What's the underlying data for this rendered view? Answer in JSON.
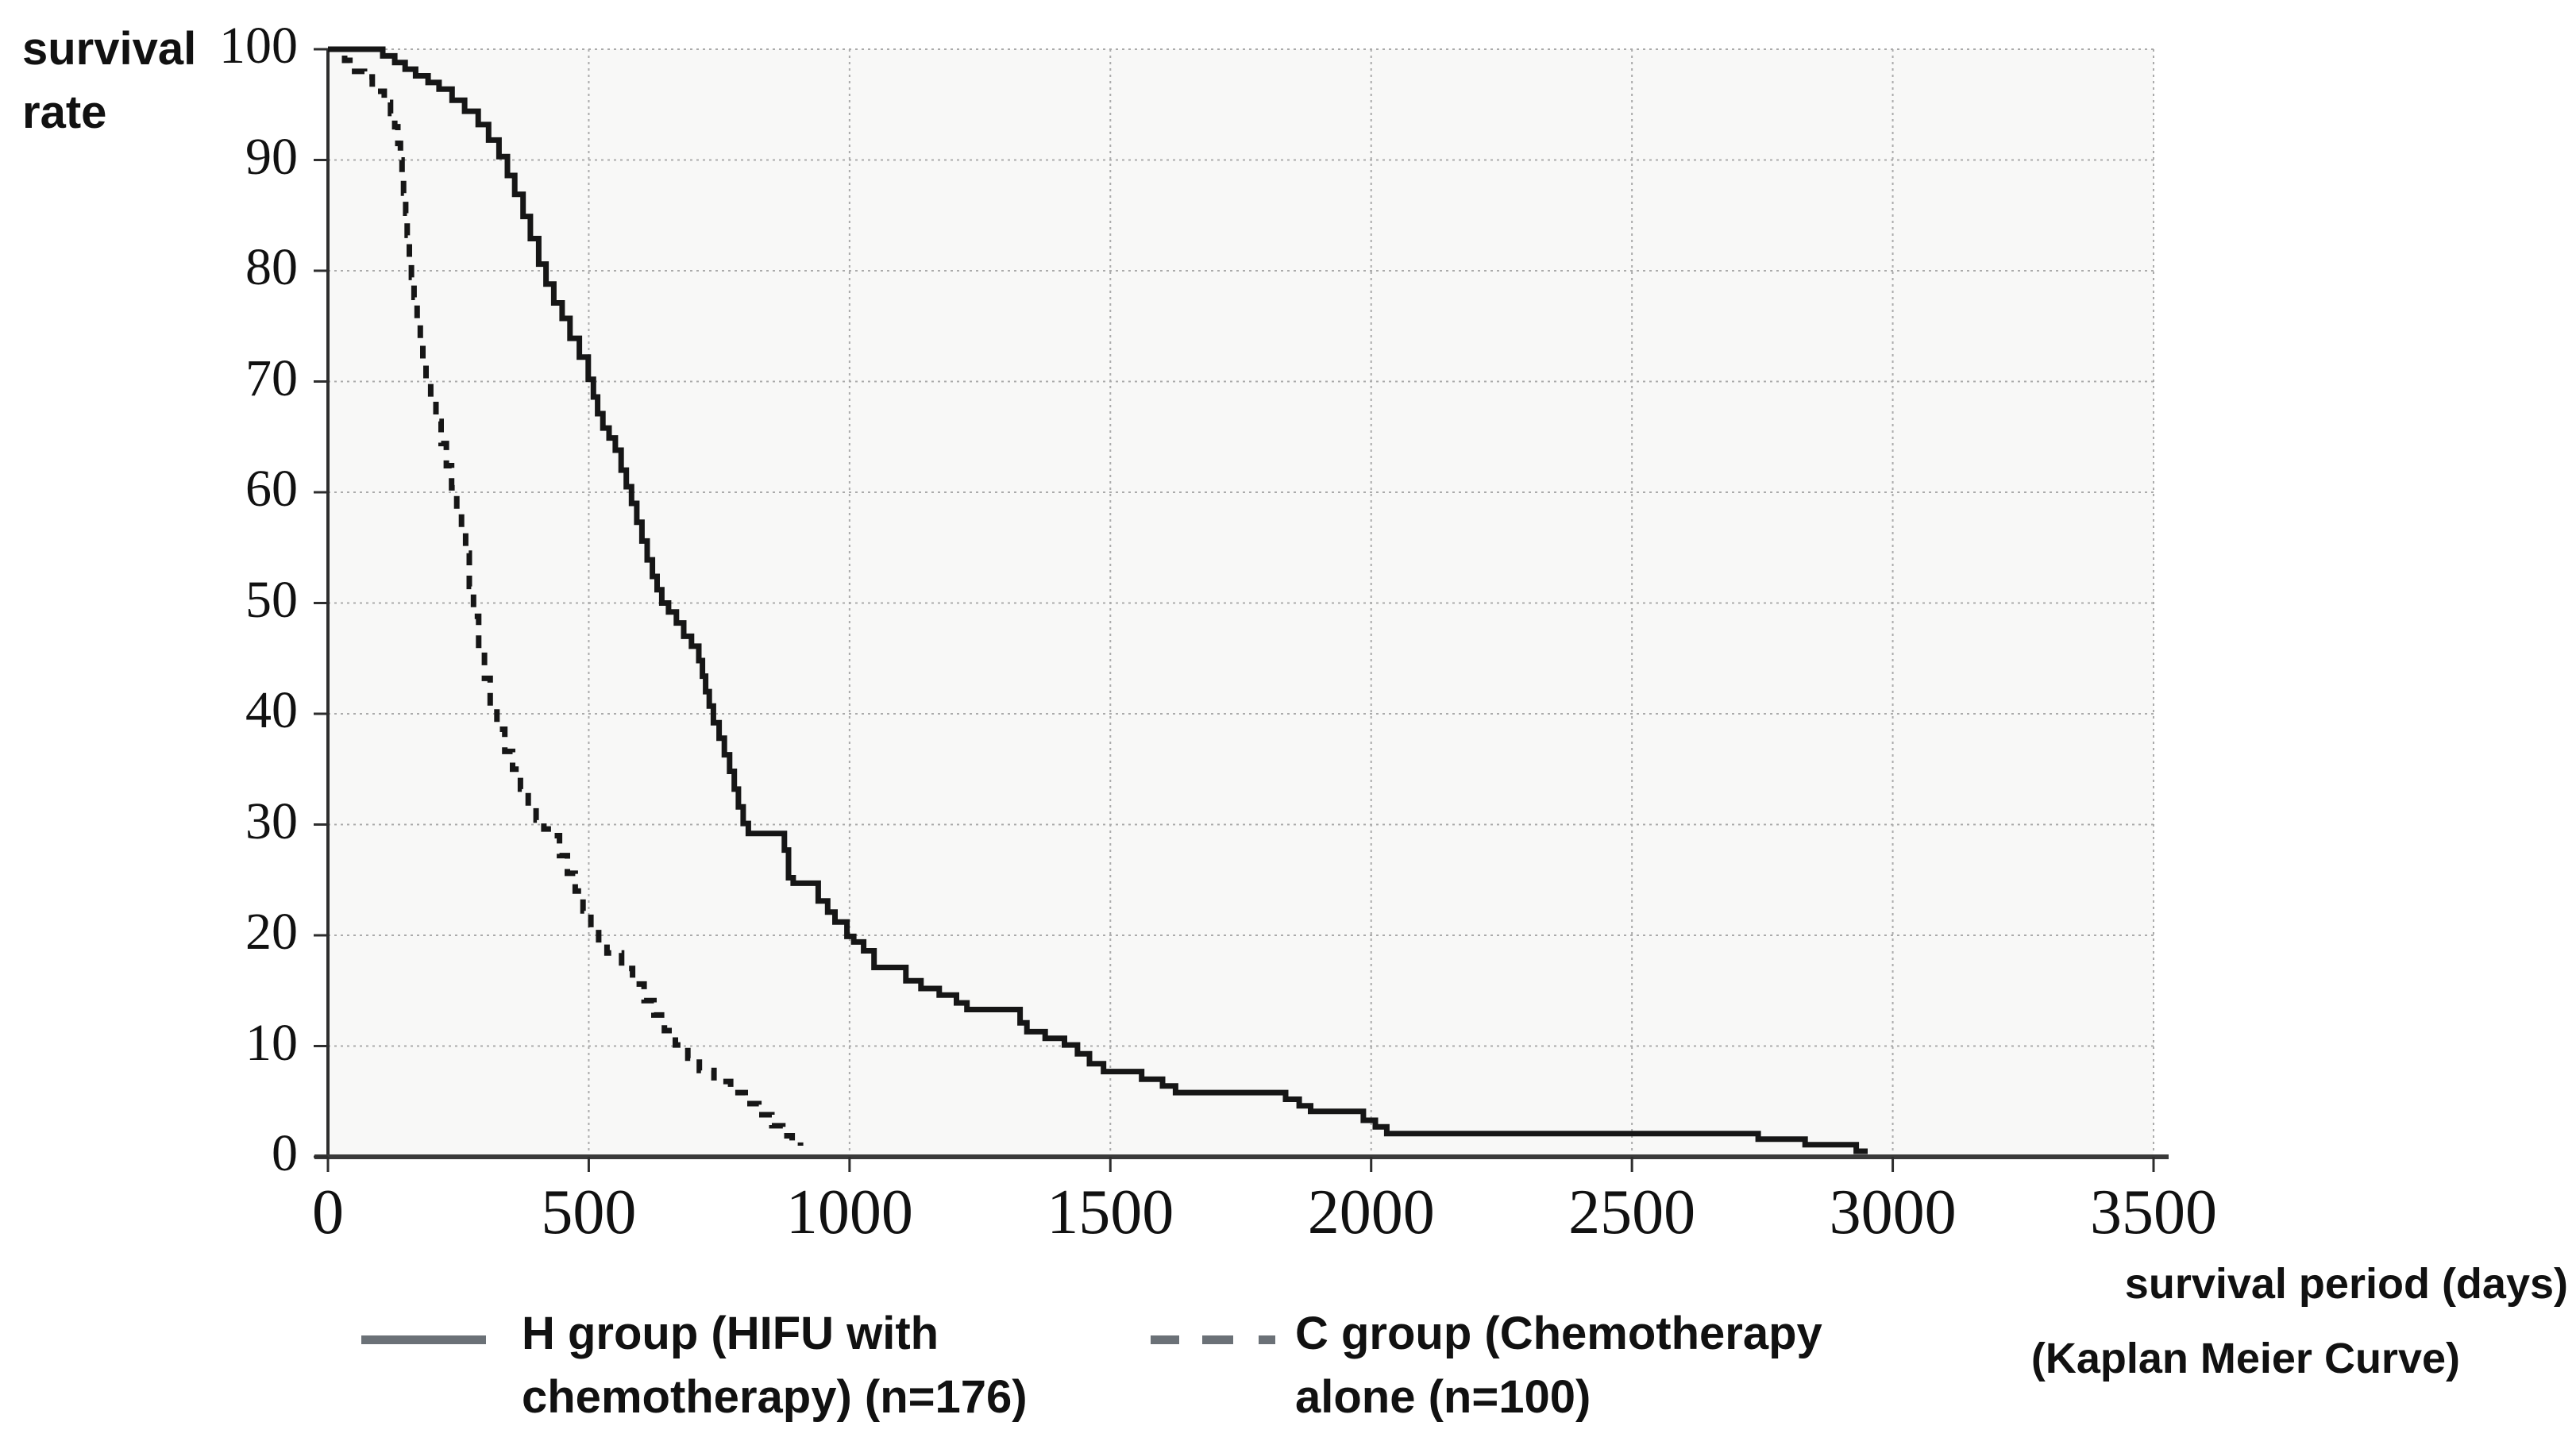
{
  "figure": {
    "y_axis_title_line1": "survival",
    "y_axis_title_line2": "rate",
    "x_axis_title": "survival period (days)",
    "caption": "(Kaplan Meier Curve)"
  },
  "legend": {
    "items": [
      {
        "key": "H",
        "swatch": "solid",
        "line1": "H group (HIFU with",
        "line2": "chemotherapy) (n=176)"
      },
      {
        "key": "C",
        "swatch": "dashed",
        "line1": "C group (Chemotherapy",
        "line2": "alone (n=100)"
      }
    ]
  },
  "colors": {
    "curve": "#161616",
    "legend_swatch": "#6b7177",
    "gridline": "#ababab",
    "y_axis": "#2e2e2e",
    "x_axis": "#3a3a3a",
    "plot_bg": "#f8f8f7",
    "text": "#111111"
  },
  "chart_data": {
    "type": "line",
    "subtype": "kaplan-meier-step",
    "title": "",
    "xlabel": "survival period (days)",
    "ylabel": "survival rate",
    "xlim": [
      0,
      3500
    ],
    "ylim": [
      0,
      100
    ],
    "x_ticks": [
      0,
      500,
      1000,
      1500,
      2000,
      2500,
      3000,
      3500
    ],
    "y_ticks": [
      0,
      10,
      20,
      30,
      40,
      50,
      60,
      70,
      80,
      90,
      100
    ],
    "grid": true,
    "legend_position": "bottom",
    "series": [
      {
        "name": "H group (HIFU with chemotherapy) (n=176)",
        "style": "solid",
        "points": [
          [
            0,
            100
          ],
          [
            105,
            99.4
          ],
          [
            128,
            98.8
          ],
          [
            148,
            98.2
          ],
          [
            168,
            97.6
          ],
          [
            192,
            97.0
          ],
          [
            213,
            96.4
          ],
          [
            238,
            95.4
          ],
          [
            262,
            94.4
          ],
          [
            288,
            93.2
          ],
          [
            308,
            91.8
          ],
          [
            328,
            90.3
          ],
          [
            344,
            88.6
          ],
          [
            358,
            86.9
          ],
          [
            374,
            84.9
          ],
          [
            388,
            82.9
          ],
          [
            404,
            80.6
          ],
          [
            418,
            78.8
          ],
          [
            433,
            77.1
          ],
          [
            449,
            75.7
          ],
          [
            464,
            73.9
          ],
          [
            482,
            72.2
          ],
          [
            499,
            70.2
          ],
          [
            509,
            68.6
          ],
          [
            517,
            67.1
          ],
          [
            527,
            65.8
          ],
          [
            539,
            64.9
          ],
          [
            551,
            63.8
          ],
          [
            562,
            62.0
          ],
          [
            572,
            60.5
          ],
          [
            582,
            59.0
          ],
          [
            592,
            57.3
          ],
          [
            602,
            55.6
          ],
          [
            612,
            53.9
          ],
          [
            622,
            52.4
          ],
          [
            631,
            51.2
          ],
          [
            640,
            50.0
          ],
          [
            653,
            49.2
          ],
          [
            668,
            48.2
          ],
          [
            682,
            47.0
          ],
          [
            697,
            46.1
          ],
          [
            711,
            44.8
          ],
          [
            718,
            43.4
          ],
          [
            724,
            42.0
          ],
          [
            731,
            40.7
          ],
          [
            739,
            39.2
          ],
          [
            750,
            37.8
          ],
          [
            760,
            36.3
          ],
          [
            770,
            34.8
          ],
          [
            779,
            33.2
          ],
          [
            787,
            31.6
          ],
          [
            796,
            30.1
          ],
          [
            806,
            29.2
          ],
          [
            875,
            27.7
          ],
          [
            883,
            25.2
          ],
          [
            892,
            24.7
          ],
          [
            940,
            23.1
          ],
          [
            958,
            22.1
          ],
          [
            972,
            21.2
          ],
          [
            995,
            19.9
          ],
          [
            1008,
            19.4
          ],
          [
            1027,
            18.6
          ],
          [
            1047,
            17.1
          ],
          [
            1108,
            15.9
          ],
          [
            1137,
            15.2
          ],
          [
            1172,
            14.6
          ],
          [
            1205,
            13.9
          ],
          [
            1225,
            13.3
          ],
          [
            1327,
            12.1
          ],
          [
            1340,
            11.3
          ],
          [
            1375,
            10.7
          ],
          [
            1412,
            10.1
          ],
          [
            1437,
            9.3
          ],
          [
            1460,
            8.4
          ],
          [
            1487,
            7.7
          ],
          [
            1560,
            7.0
          ],
          [
            1600,
            6.4
          ],
          [
            1625,
            5.8
          ],
          [
            1836,
            5.2
          ],
          [
            1862,
            4.6
          ],
          [
            1884,
            4.1
          ],
          [
            1985,
            3.3
          ],
          [
            2008,
            2.7
          ],
          [
            2030,
            2.1
          ],
          [
            2742,
            1.6
          ],
          [
            2832,
            1.1
          ],
          [
            2930,
            0.5
          ],
          [
            2952,
            0.5
          ]
        ]
      },
      {
        "name": "C group (Chemotherapy alone (n=100)",
        "style": "dashed",
        "points": [
          [
            0,
            100
          ],
          [
            32,
            99
          ],
          [
            42,
            98
          ],
          [
            70,
            97.5
          ],
          [
            85,
            96.2
          ],
          [
            108,
            95.2
          ],
          [
            120,
            94.2
          ],
          [
            128,
            93.0
          ],
          [
            134,
            91.5
          ],
          [
            139,
            90.0
          ],
          [
            142,
            88.5
          ],
          [
            145,
            87.0
          ],
          [
            149,
            85.2
          ],
          [
            152,
            83.2
          ],
          [
            156,
            81.2
          ],
          [
            160,
            79.4
          ],
          [
            165,
            77.6
          ],
          [
            171,
            75.6
          ],
          [
            177,
            73.7
          ],
          [
            182,
            71.8
          ],
          [
            188,
            70.1
          ],
          [
            197,
            68.4
          ],
          [
            207,
            66.4
          ],
          [
            217,
            64.4
          ],
          [
            227,
            62.4
          ],
          [
            237,
            60.4
          ],
          [
            247,
            58.4
          ],
          [
            256,
            56.4
          ],
          [
            264,
            54.5
          ],
          [
            271,
            51.5
          ],
          [
            279,
            48.8
          ],
          [
            289,
            45.8
          ],
          [
            300,
            43.2
          ],
          [
            311,
            40.6
          ],
          [
            324,
            38.6
          ],
          [
            339,
            36.6
          ],
          [
            354,
            35.0
          ],
          [
            369,
            33.2
          ],
          [
            384,
            31.6
          ],
          [
            399,
            30.4
          ],
          [
            414,
            29.6
          ],
          [
            429,
            29.0
          ],
          [
            444,
            27.2
          ],
          [
            459,
            25.6
          ],
          [
            474,
            24.0
          ],
          [
            489,
            22.2
          ],
          [
            504,
            20.6
          ],
          [
            519,
            19.2
          ],
          [
            535,
            18.4
          ],
          [
            563,
            17.0
          ],
          [
            584,
            15.6
          ],
          [
            606,
            14.1
          ],
          [
            625,
            12.8
          ],
          [
            645,
            11.4
          ],
          [
            666,
            10.1
          ],
          [
            690,
            8.9
          ],
          [
            712,
            7.8
          ],
          [
            740,
            6.8
          ],
          [
            772,
            5.8
          ],
          [
            800,
            4.8
          ],
          [
            826,
            3.8
          ],
          [
            851,
            2.8
          ],
          [
            872,
            1.9
          ],
          [
            890,
            1.3
          ],
          [
            906,
            1.0
          ]
        ]
      }
    ]
  }
}
